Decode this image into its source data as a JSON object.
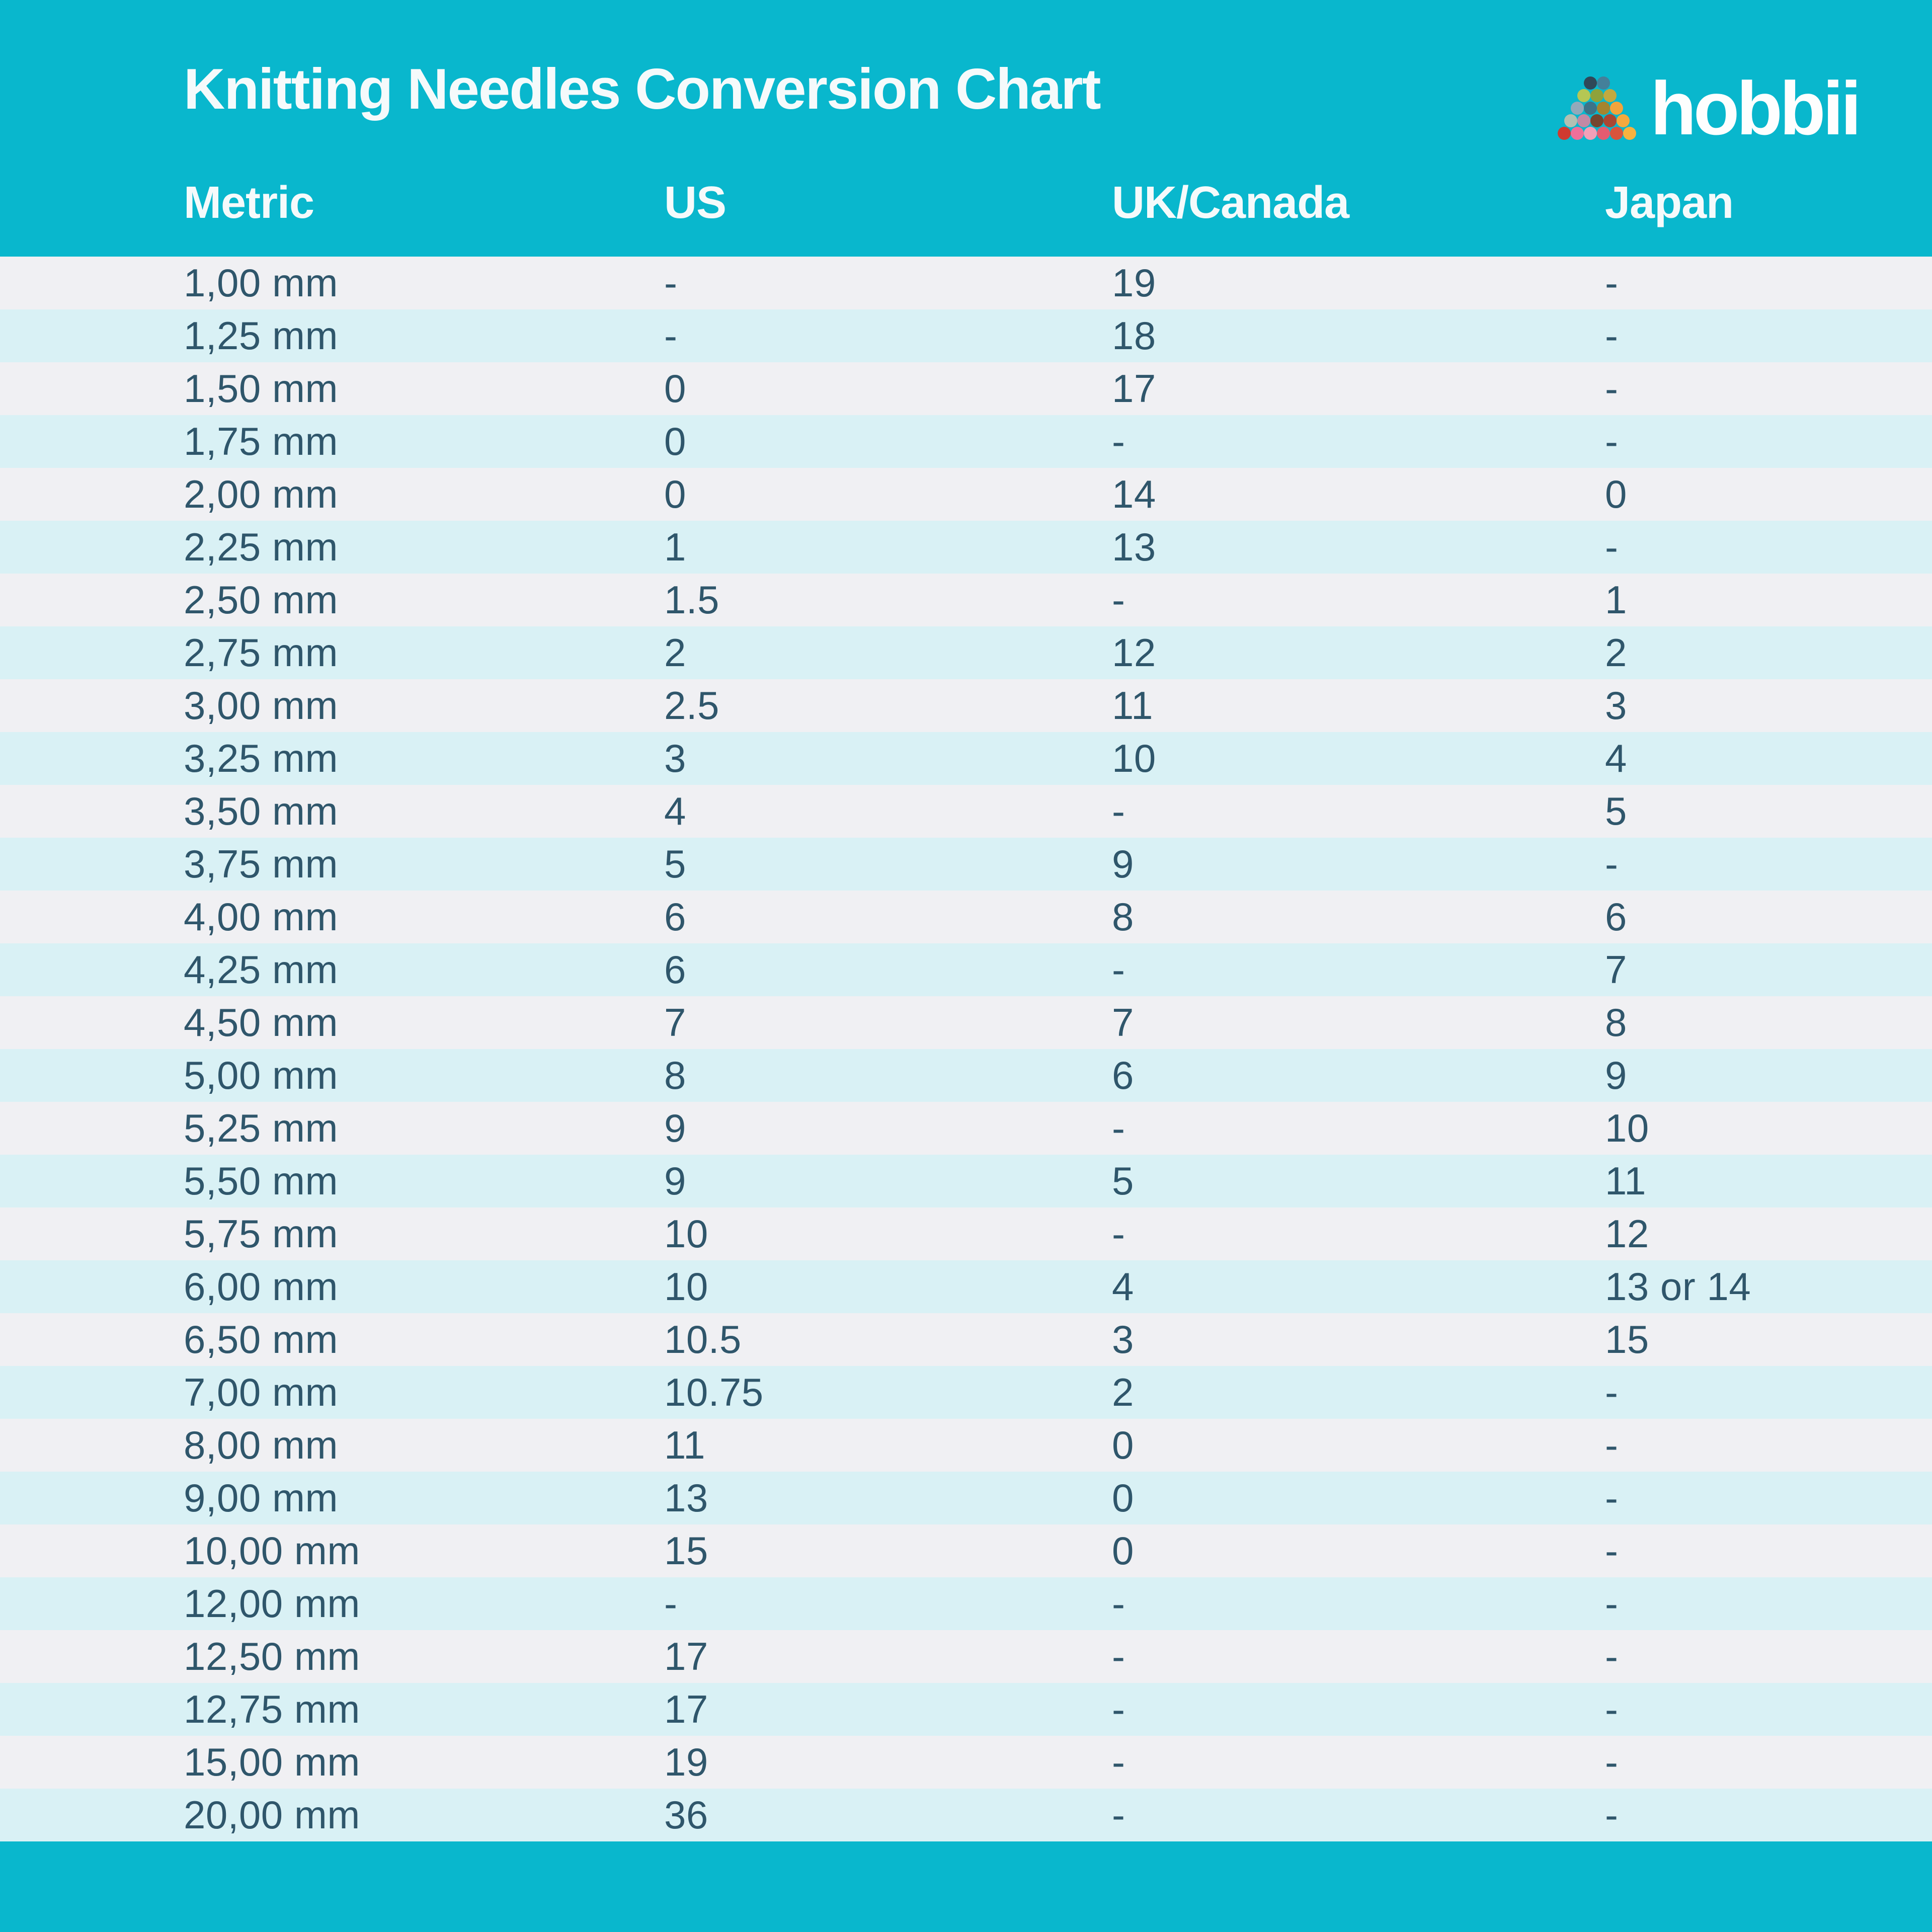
{
  "header": {
    "title": "Knitting Needles Conversion Chart"
  },
  "logo": {
    "brand": "hobbii",
    "icon": "yarn-pyramid-icon",
    "yarn_colors": [
      [
        "#2f4858",
        "#44809a"
      ],
      [
        "#b5c754",
        "#8fa23b",
        "#c3a93f"
      ],
      [
        "#92a9ba",
        "#3d7388",
        "#a5842f",
        "#f2a43c"
      ],
      [
        "#b2c0b2",
        "#c289a4",
        "#754630",
        "#aa4733",
        "#f5a93e"
      ],
      [
        "#cf3a30",
        "#ef6f9a",
        "#f2a0b8",
        "#e55c70",
        "#d9543c",
        "#f7b23f"
      ]
    ]
  },
  "colors": {
    "accent_teal": "#09b7cd",
    "row_light": "#f0f0f3",
    "row_teal": "#d9f1f5",
    "text_dark": "#2f566b",
    "text_light": "#f5fafb"
  },
  "chart_data": {
    "type": "table",
    "title": "Knitting Needles Conversion Chart",
    "columns": [
      "Metric",
      "US",
      "UK/Canada",
      "Japan"
    ],
    "rows": [
      [
        "1,00 mm",
        "-",
        "19",
        "-"
      ],
      [
        "1,25 mm",
        "-",
        "18",
        "-"
      ],
      [
        "1,50 mm",
        "0",
        "17",
        "-"
      ],
      [
        "1,75 mm",
        "0",
        "-",
        "-"
      ],
      [
        "2,00 mm",
        "0",
        "14",
        "0"
      ],
      [
        "2,25 mm",
        "1",
        "13",
        "-"
      ],
      [
        "2,50 mm",
        "1.5",
        "-",
        "1"
      ],
      [
        "2,75 mm",
        "2",
        "12",
        "2"
      ],
      [
        "3,00 mm",
        "2.5",
        "11",
        "3"
      ],
      [
        "3,25 mm",
        "3",
        "10",
        "4"
      ],
      [
        "3,50 mm",
        "4",
        "-",
        "5"
      ],
      [
        "3,75 mm",
        "5",
        "9",
        "-"
      ],
      [
        "4,00 mm",
        "6",
        "8",
        "6"
      ],
      [
        "4,25 mm",
        "6",
        "-",
        "7"
      ],
      [
        "4,50 mm",
        "7",
        "7",
        "8"
      ],
      [
        "5,00 mm",
        "8",
        "6",
        "9"
      ],
      [
        "5,25 mm",
        "9",
        "-",
        "10"
      ],
      [
        "5,50 mm",
        "9",
        "5",
        "11"
      ],
      [
        "5,75 mm",
        "10",
        "-",
        "12"
      ],
      [
        "6,00 mm",
        "10",
        "4",
        "13 or 14"
      ],
      [
        "6,50 mm",
        "10.5",
        "3",
        "15"
      ],
      [
        "7,00 mm",
        "10.75",
        "2",
        "-"
      ],
      [
        "8,00 mm",
        "11",
        "0",
        "-"
      ],
      [
        "9,00 mm",
        "13",
        "0",
        "-"
      ],
      [
        "10,00 mm",
        "15",
        "0",
        "-"
      ],
      [
        "12,00 mm",
        "-",
        "-",
        "-"
      ],
      [
        "12,50 mm",
        "17",
        "-",
        "-"
      ],
      [
        "12,75 mm",
        "17",
        "-",
        "-"
      ],
      [
        "15,00 mm",
        "19",
        "-",
        "-"
      ],
      [
        "20,00 mm",
        "36",
        "-",
        "-"
      ]
    ]
  }
}
